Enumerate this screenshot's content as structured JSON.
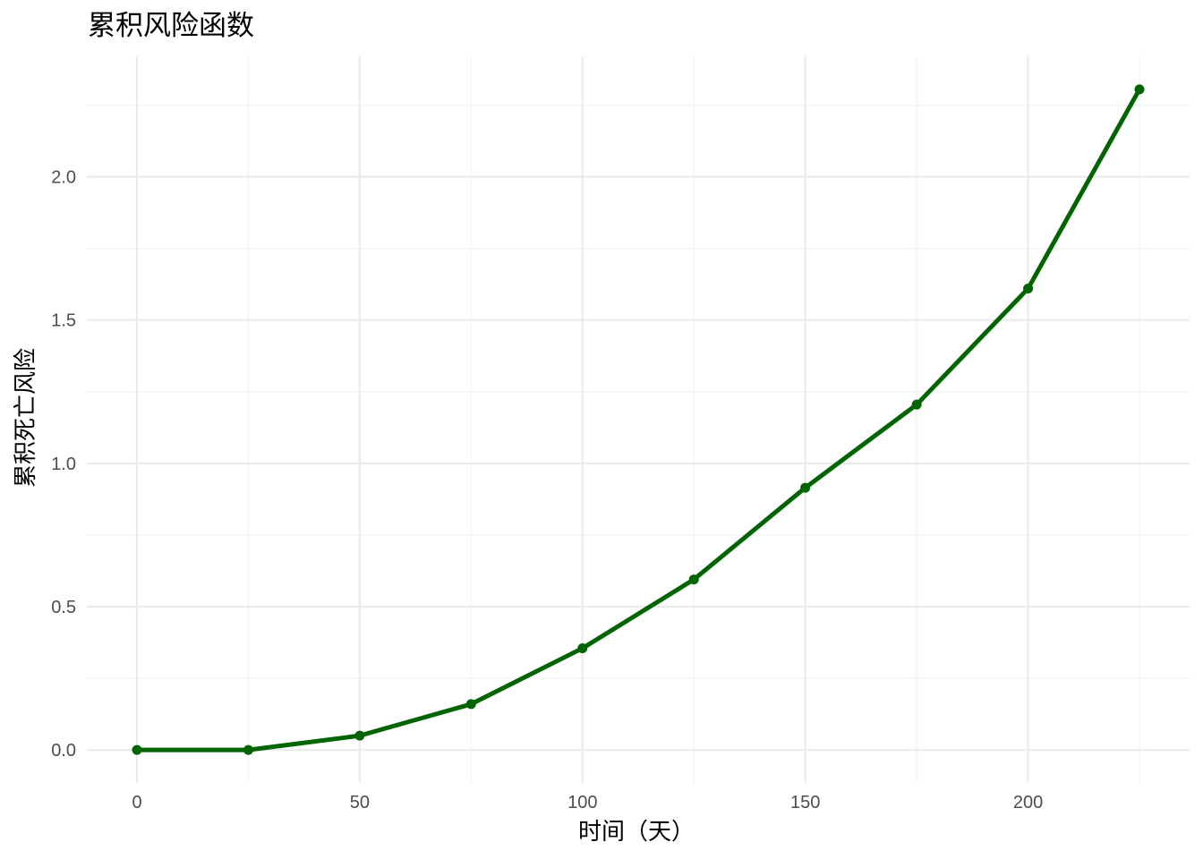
{
  "chart_data": {
    "type": "line",
    "title": "累积风险函数",
    "xlabel": "时间（天）",
    "ylabel": "累积死亡风险",
    "x": [
      0,
      25,
      50,
      75,
      100,
      125,
      150,
      175,
      200,
      225
    ],
    "series": [
      {
        "values": [
          0.0,
          0.0,
          0.05,
          0.16,
          0.355,
          0.595,
          0.915,
          1.205,
          1.61,
          2.305
        ]
      }
    ],
    "xlim": [
      -11.25,
      236.25
    ],
    "ylim": [
      -0.115,
      2.42
    ],
    "x_ticks": [
      0,
      50,
      100,
      150,
      200
    ],
    "x_tick_labels": [
      "0",
      "50",
      "100",
      "150",
      "200"
    ],
    "x_minor": [
      25,
      75,
      125,
      175,
      225
    ],
    "y_ticks": [
      0,
      0.5,
      1.0,
      1.5,
      2.0
    ],
    "y_tick_labels": [
      "0.0",
      "0.5",
      "1.0",
      "1.5",
      "2.0"
    ],
    "y_minor": [
      0.25,
      0.75,
      1.25,
      1.75,
      2.25
    ],
    "grid": true,
    "legend": "none",
    "colors": {
      "line": "#006400",
      "point": "#006400",
      "background": "#ffffff"
    }
  }
}
